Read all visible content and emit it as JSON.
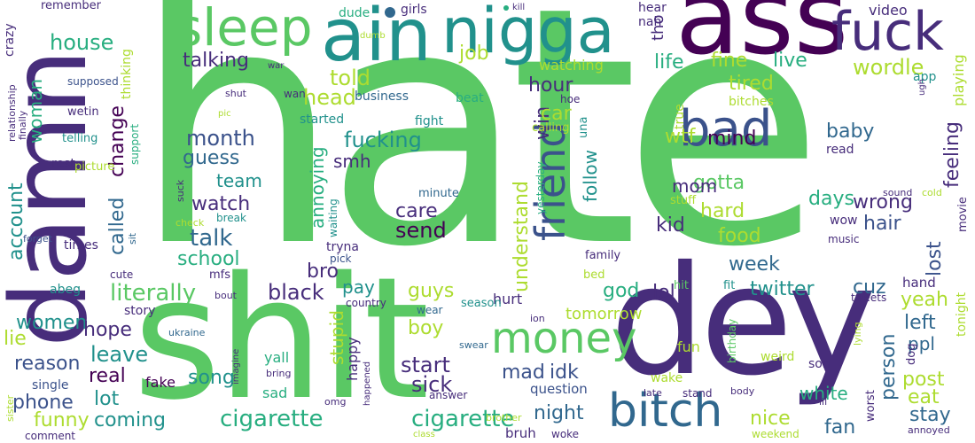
{
  "colors": {
    "background": "#ffffff",
    "green": "#5ac864",
    "lime": "#addc30",
    "teal": "#21918c",
    "cyan": "#28ae80",
    "blue": "#3b528b",
    "indigo": "#472d7b",
    "purple": "#440154",
    "steel": "#31688e"
  },
  "words": {
    "hate": "hate",
    "damn": "damn",
    "shit": "shit",
    "dey": "dey",
    "ass": "ass",
    "aint": "ain",
    "nigga": "nigga",
    "fuck": "fuck",
    "sleep": "sleep",
    "bitch": "bitch",
    "bad": "bad",
    "money": "money",
    "friend": "friend",
    "cigarette1": "cigarette",
    "cigarette2": "cigarette",
    "house": "house",
    "talking": "talking",
    "told": "told",
    "head": "head",
    "job": "job",
    "life": "life",
    "fine": "fine",
    "live": "live",
    "wordle": "wordle",
    "hour": "hour",
    "tired": "tired",
    "fucking": "fucking",
    "month": "month",
    "guess": "guess",
    "watch": "watch",
    "talk": "talk",
    "school": "school",
    "team": "team",
    "literally": "literally",
    "smh": "smh",
    "care": "care",
    "send": "send",
    "account": "account",
    "woman": "woman",
    "change": "change",
    "called": "called",
    "annoying": "annoying",
    "understand": "understand",
    "win": "win",
    "follow": "follow",
    "car": "car",
    "wtf": "wtf",
    "mind": "mind",
    "gotta": "gotta",
    "mom": "mom",
    "kid": "kid",
    "food": "food",
    "hard": "hard",
    "days": "days",
    "wrong": "wrong",
    "hair": "hair",
    "baby": "baby",
    "feeling": "feeling",
    "lost": "lost",
    "week": "week",
    "twitter": "twitter",
    "cuz": "cuz",
    "yeah": "yeah",
    "left": "left",
    "ppl": "ppl",
    "post": "post",
    "eat": "eat",
    "stay": "stay",
    "person": "person",
    "god": "god",
    "lol": "lol",
    "black": "black",
    "bro": "bro",
    "pay": "pay",
    "guys": "guys",
    "stupid": "stupid",
    "boy": "boy",
    "start": "start",
    "sick": "sick",
    "mad": "mad",
    "idk": "idk",
    "night": "night",
    "nice": "nice",
    "fan": "fan",
    "tomorrow": "tomorrow",
    "women": "women",
    "hope": "hope",
    "leave": "leave",
    "lie": "lie",
    "reason": "reason",
    "real": "real",
    "lot": "lot",
    "phone": "phone",
    "funny": "funny",
    "coming": "coming",
    "song": "song",
    "fake": "fake",
    "story": "story",
    "single": "single",
    "sad": "sad",
    "yall": "yall",
    "happy": "happy",
    "hurt": "hurt",
    "question": "question",
    "bruh": "bruh",
    "white": "white",
    "post2": "post",
    "watching": "watching",
    "playing": "playing",
    "tonight": "tonight",
    "fight": "fight",
    "started": "started",
    "bitches": "bitches",
    "beat": "beat",
    "business": "business",
    "dude": "dude",
    "girls": "girls",
    "hear": "hear",
    "nah": "nah",
    "video": "video",
    "tho": "tho",
    "app": "app",
    "remember": "remember",
    "crazy": "crazy",
    "thinking": "thinking",
    "supposed": "supposed",
    "relationship": "relationship",
    "finally": "finally",
    "wetin": "wetin",
    "telling": "telling",
    "rest": "rest",
    "picture": "picture",
    "support": "support",
    "true": "true",
    "calling": "calling",
    "una": "una",
    "yesterday": "yesterday",
    "minute": "minute",
    "tryna": "tryna",
    "waiting": "waiting",
    "pick": "pick",
    "family": "family",
    "bed": "bed",
    "stuff": "stuff",
    "wow": "wow",
    "music": "music",
    "read": "read",
    "sound": "sound",
    "cold": "cold",
    "movie": "movie",
    "mfs": "mfs",
    "bout": "bout",
    "suck": "suck",
    "check": "check",
    "break": "break",
    "times": "times",
    "forget": "forget",
    "sit": "sit",
    "cute": "cute",
    "abeg": "abeg",
    "ukraine": "ukraine",
    "country": "country",
    "season": "season",
    "wear": "wear",
    "ion": "ion",
    "swear": "swear",
    "hit": "hit",
    "fit": "fit",
    "birthday": "birthday",
    "fun": "fun",
    "weird": "weird",
    "son": "son",
    "dog": "dog",
    "hand": "hand",
    "tweets": "tweets",
    "lying": "lying",
    "lil": "lil",
    "worst": "worst",
    "wake": "wake",
    "late": "late",
    "stand": "stand",
    "body": "body",
    "answer": "answer",
    "omg": "omg",
    "brother": "brother",
    "class": "class",
    "woke": "woke",
    "weekend": "weekend",
    "annoyed": "annoyed",
    "comment": "comment",
    "sister": "sister",
    "imagine": "imagine",
    "bring": "bring",
    "happened": "happened",
    "kill": "kill",
    "war": "war",
    "dumb": "dumb",
    "wan": "wan",
    "hoe": "hoe",
    "shut": "shut",
    "pic": "pic",
    "ugh": "ugh"
  }
}
